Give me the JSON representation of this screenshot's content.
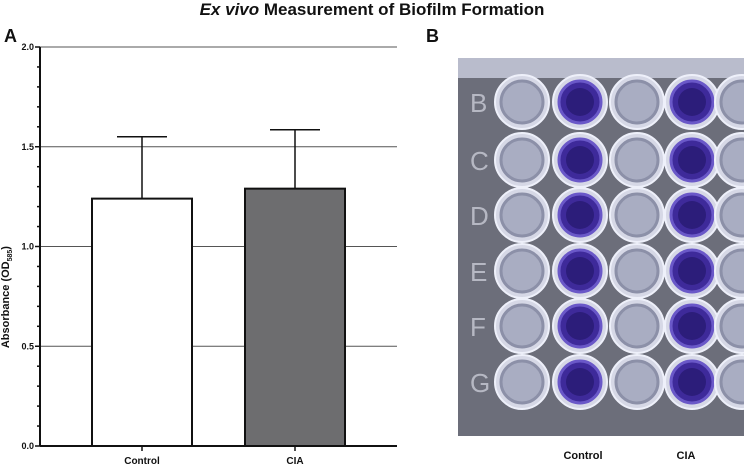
{
  "title": {
    "italic": "Ex vivo",
    "rest": " Measurement of Biofilm Formation"
  },
  "panels": {
    "a": "A",
    "b": "B"
  },
  "chart_data": {
    "type": "bar",
    "categories": [
      "Control",
      "CIA"
    ],
    "values": [
      1.24,
      1.29
    ],
    "error_upper": [
      1.55,
      1.585
    ],
    "ylabel": "Absorbance (OD585)",
    "ylabel_main": "Absorbance (OD",
    "ylabel_sub": "585",
    "ylabel_end": ")",
    "ylim": [
      0,
      2.0
    ],
    "yticks": [
      "0.0",
      "0.5",
      "1.0",
      "1.5",
      "2.0"
    ],
    "grid": true,
    "colors": [
      "#ffffff",
      "#6d6d6f"
    ]
  },
  "photo": {
    "row_labels": [
      "B",
      "C",
      "D",
      "E",
      "F",
      "G"
    ],
    "column_labels": [
      "Control",
      "CIA"
    ],
    "stain_color": "#3e2a9a"
  }
}
